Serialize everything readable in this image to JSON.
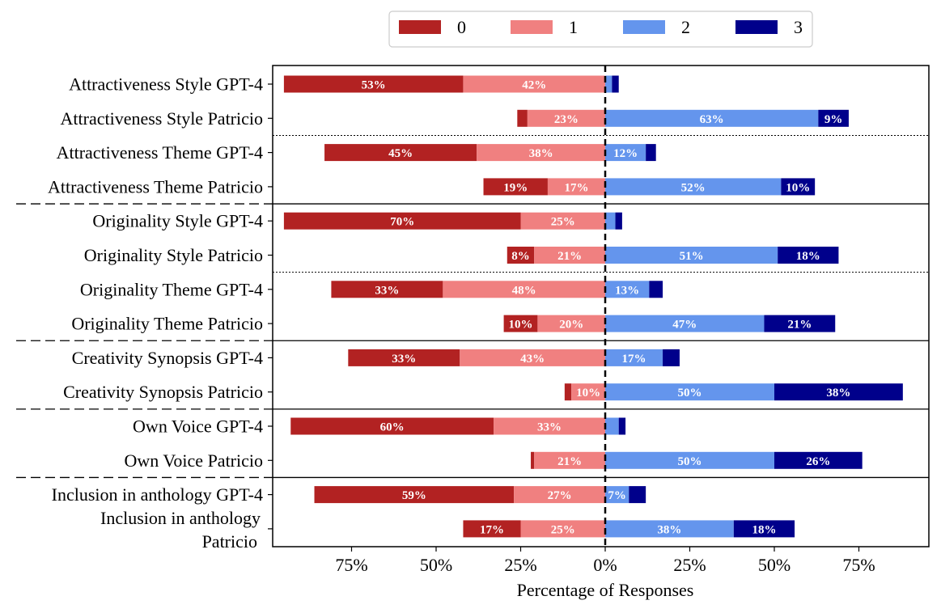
{
  "chart_data": {
    "type": "bar",
    "orientation": "horizontal-diverging",
    "xlabel": "Percentage of Responses",
    "x_ticks": [
      "75%",
      "50%",
      "25%",
      "0%",
      "25%",
      "50%",
      "75%"
    ],
    "x_tick_values": [
      -75,
      -50,
      -25,
      0,
      25,
      50,
      75
    ],
    "xlim": [
      -96,
      98
    ],
    "legend_position": "top-center",
    "colors": {
      "0": "#b22222",
      "1": "#f08080",
      "2": "#6495ed",
      "3": "#00008b"
    },
    "series": [
      {
        "name": "0"
      },
      {
        "name": "1"
      },
      {
        "name": "2"
      },
      {
        "name": "3"
      }
    ],
    "categories": [
      {
        "label": [
          "Attractiveness Style GPT-4"
        ],
        "values": [
          53,
          42,
          2,
          2
        ],
        "shown": [
          "53%",
          "42%",
          "",
          ""
        ]
      },
      {
        "label": [
          "Attractiveness Style Patricio"
        ],
        "values": [
          3,
          23,
          63,
          9
        ],
        "shown": [
          "",
          "23%",
          "63%",
          "9%"
        ]
      },
      {
        "label": [
          "Attractiveness Theme GPT-4"
        ],
        "values": [
          45,
          38,
          12,
          3
        ],
        "shown": [
          "45%",
          "38%",
          "12%",
          ""
        ]
      },
      {
        "label": [
          "Attractiveness Theme Patricio"
        ],
        "values": [
          19,
          17,
          52,
          10
        ],
        "shown": [
          "19%",
          "17%",
          "52%",
          "10%"
        ]
      },
      {
        "label": [
          "Originality Style GPT-4"
        ],
        "values": [
          70,
          25,
          3,
          2
        ],
        "shown": [
          "70%",
          "25%",
          "",
          ""
        ]
      },
      {
        "label": [
          "Originality Style Patricio"
        ],
        "values": [
          8,
          21,
          51,
          18
        ],
        "shown": [
          "8%",
          "21%",
          "51%",
          "18%"
        ]
      },
      {
        "label": [
          "Originality Theme GPT-4"
        ],
        "values": [
          33,
          48,
          13,
          4
        ],
        "shown": [
          "33%",
          "48%",
          "13%",
          ""
        ]
      },
      {
        "label": [
          "Originality Theme Patricio"
        ],
        "values": [
          10,
          20,
          47,
          21
        ],
        "shown": [
          "10%",
          "20%",
          "47%",
          "21%"
        ]
      },
      {
        "label": [
          "Creativity Synopsis GPT-4"
        ],
        "values": [
          33,
          43,
          17,
          5
        ],
        "shown": [
          "33%",
          "43%",
          "17%",
          ""
        ]
      },
      {
        "label": [
          "Creativity Synopsis Patricio"
        ],
        "values": [
          2,
          10,
          50,
          38
        ],
        "shown": [
          "",
          "10%",
          "50%",
          "38%"
        ]
      },
      {
        "label": [
          "Own Voice GPT-4"
        ],
        "values": [
          60,
          33,
          4,
          2
        ],
        "shown": [
          "60%",
          "33%",
          "",
          ""
        ]
      },
      {
        "label": [
          "Own Voice Patricio"
        ],
        "values": [
          1,
          21,
          50,
          26
        ],
        "shown": [
          "",
          "21%",
          "50%",
          "26%"
        ]
      },
      {
        "label": [
          "Inclusion in anthology GPT-4"
        ],
        "values": [
          59,
          27,
          7,
          5
        ],
        "shown": [
          "59%",
          "27%",
          "7%",
          ""
        ]
      },
      {
        "label": [
          "Inclusion in anthology",
          "Patricio"
        ],
        "values": [
          17,
          25,
          38,
          18
        ],
        "shown": [
          "17%",
          "25%",
          "38%",
          "18%"
        ]
      }
    ],
    "group_separators_solid_after": [
      3,
      7,
      9,
      11
    ],
    "group_separators_dotted_after": [
      1,
      5
    ]
  }
}
